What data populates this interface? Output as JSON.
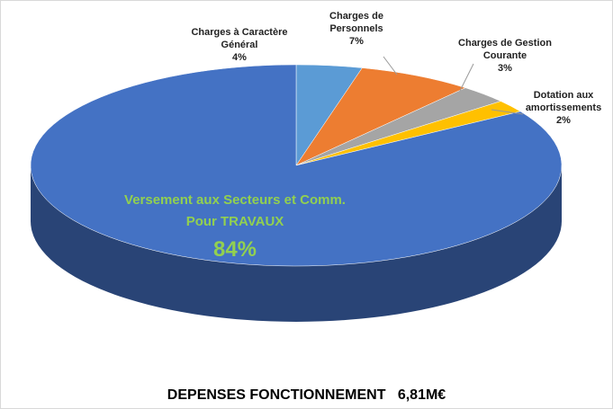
{
  "chart_data": {
    "type": "pie",
    "title": "DEPENSES FONCTIONNEMENT   6,81M€",
    "categories": [
      "Charges à Caractère Général",
      "Charges de Personnels",
      "Charges de Gestion Courante",
      "Dotation aux amortissements",
      "Versement aux Secteurs et Comm. Pour TRAVAUX"
    ],
    "values": [
      4,
      7,
      3,
      2,
      84
    ],
    "value_labels": [
      "4%",
      "7%",
      "3%",
      "2%",
      "84%"
    ],
    "colors": [
      "#5b9bd5",
      "#ed7d31",
      "#a5a5a5",
      "#ffc000",
      "#4472c4"
    ]
  }
}
